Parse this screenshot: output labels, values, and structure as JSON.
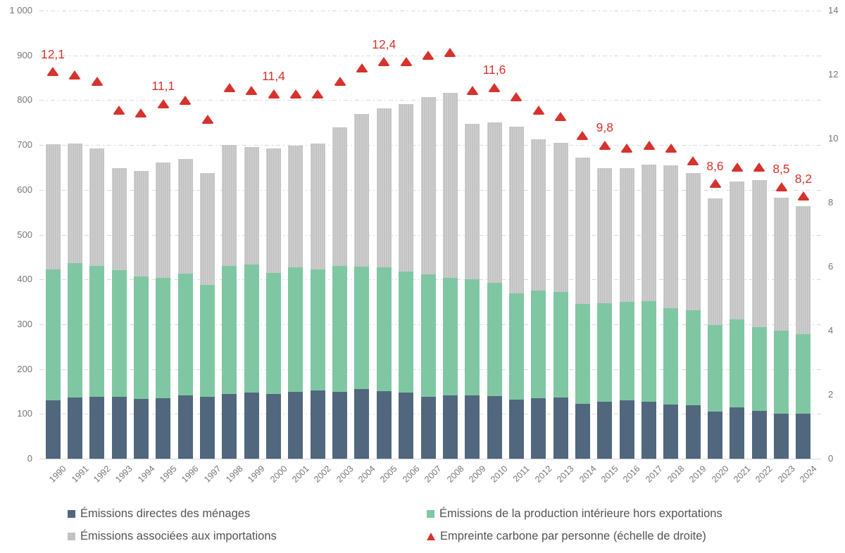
{
  "chart_data": {
    "type": "bar",
    "stacked": true,
    "title": "",
    "unit_left": "",
    "categories": [
      "1990",
      "1991",
      "1992",
      "1993",
      "1994",
      "1995",
      "1996",
      "1997",
      "1998",
      "1999",
      "2000",
      "2001",
      "2002",
      "2003",
      "2004",
      "2005",
      "2006",
      "2007",
      "2008",
      "2009",
      "2010",
      "2011",
      "2012",
      "2013",
      "2014",
      "2015",
      "2016",
      "2017",
      "2018",
      "2019",
      "2020",
      "2021",
      "2022",
      "2023",
      "2024"
    ],
    "series": [
      {
        "name": "Émissions directes des ménages",
        "color": "#51677e",
        "values": [
          130,
          137,
          139,
          138,
          134,
          135,
          141,
          139,
          145,
          147,
          144,
          150,
          152,
          150,
          155,
          151,
          148,
          139,
          141,
          141,
          140,
          132,
          135,
          136,
          123,
          127,
          130,
          128,
          121,
          119,
          105,
          114,
          107,
          100,
          100
        ]
      },
      {
        "name": "Émissions de la production intérieure hors exportations",
        "color": "#7fc7a3",
        "values": [
          293,
          299,
          291,
          283,
          273,
          269,
          272,
          249,
          286,
          287,
          271,
          277,
          271,
          280,
          274,
          276,
          270,
          272,
          263,
          259,
          252,
          237,
          240,
          236,
          223,
          220,
          220,
          224,
          215,
          213,
          194,
          197,
          187,
          186,
          178
        ]
      },
      {
        "name": "Émissions associées aux importations",
        "color": "#c3c3c3",
        "values": [
          279,
          267,
          263,
          227,
          235,
          257,
          256,
          249,
          270,
          262,
          277,
          272,
          280,
          309,
          341,
          355,
          374,
          396,
          412,
          348,
          358,
          372,
          338,
          333,
          326,
          301,
          299,
          304,
          318,
          305,
          282,
          308,
          327,
          296,
          285
        ]
      }
    ],
    "marker_series": {
      "name": "Empreinte carbone par personne (échelle de droite)",
      "color": "#d7322d",
      "marker": "triangle",
      "axis": "right",
      "values": [
        12.1,
        12.0,
        11.8,
        10.9,
        10.8,
        11.1,
        11.2,
        10.6,
        11.6,
        11.5,
        11.4,
        11.4,
        11.4,
        11.8,
        12.2,
        12.4,
        12.4,
        12.6,
        12.7,
        11.5,
        11.6,
        11.3,
        10.9,
        10.7,
        10.1,
        9.8,
        9.7,
        9.8,
        9.7,
        9.3,
        8.6,
        9.1,
        9.1,
        8.5,
        8.2
      ],
      "point_labels": [
        {
          "year": "1990",
          "text": "12,1"
        },
        {
          "year": "1995",
          "text": "11,1"
        },
        {
          "year": "2000",
          "text": "11,4"
        },
        {
          "year": "2005",
          "text": "12,4"
        },
        {
          "year": "2010",
          "text": "11,6"
        },
        {
          "year": "2015",
          "text": "9,8"
        },
        {
          "year": "2020",
          "text": "8,6"
        },
        {
          "year": "2023",
          "text": "8,5"
        },
        {
          "year": "2024",
          "text": "8,2"
        }
      ]
    },
    "left_axis": {
      "min": 0,
      "max": 1000,
      "step": 100,
      "tick_labels": [
        "0",
        "100",
        "200",
        "300",
        "400",
        "500",
        "600",
        "700",
        "800",
        "900",
        "1 000"
      ]
    },
    "right_axis": {
      "min": 0,
      "max": 14,
      "step": 2,
      "tick_labels": [
        "0",
        "2",
        "4",
        "6",
        "8",
        "10",
        "12",
        "14"
      ]
    },
    "grid": {
      "horizontal": true,
      "style": "dash-dot",
      "color": "#d8d8d8"
    },
    "legend_position": "bottom"
  },
  "legend": {
    "items": [
      {
        "label": "Émissions directes des ménages",
        "marker": "square",
        "color": "#51677e"
      },
      {
        "label": "Émissions de la production intérieure hors exportations",
        "marker": "square",
        "color": "#7fc7a3"
      },
      {
        "label": "Émissions associées aux importations",
        "marker": "square",
        "color": "#c3c3c3"
      },
      {
        "label": "Empreinte carbone par personne (échelle de droite)",
        "marker": "triangle",
        "color": "#d7322d"
      }
    ]
  }
}
